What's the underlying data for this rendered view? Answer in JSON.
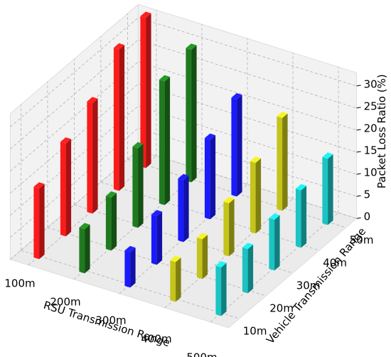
{
  "chart_data": {
    "type": "bar3d",
    "x_label": "RSU Transmission Range",
    "y_label": "Vehicle Transmission Range",
    "z_label": "Packet Loss Ratio (%)",
    "x_categories": [
      "100m",
      "200m",
      "300m",
      "400m",
      "500m"
    ],
    "y_categories": [
      "10m",
      "20m",
      "30m",
      "40m",
      "50m"
    ],
    "series": [
      {
        "color": "#ff1a1a",
        "values": [
          16,
          21,
          25,
          32,
          34
        ]
      },
      {
        "color": "#1f7a1f",
        "values": [
          10,
          12,
          18,
          28,
          30
        ]
      },
      {
        "color": "#1a1aff",
        "values": [
          8,
          11,
          14,
          18,
          22
        ]
      },
      {
        "color": "#c4c41a",
        "values": [
          9,
          9,
          12,
          16,
          21
        ]
      },
      {
        "color": "#1ac4c4",
        "values": [
          11,
          10,
          11.5,
          13,
          15
        ]
      }
    ],
    "zlim": [
      0,
      33
    ],
    "zticks": [
      0,
      5,
      10,
      15,
      20,
      25,
      30
    ],
    "grid": true
  }
}
